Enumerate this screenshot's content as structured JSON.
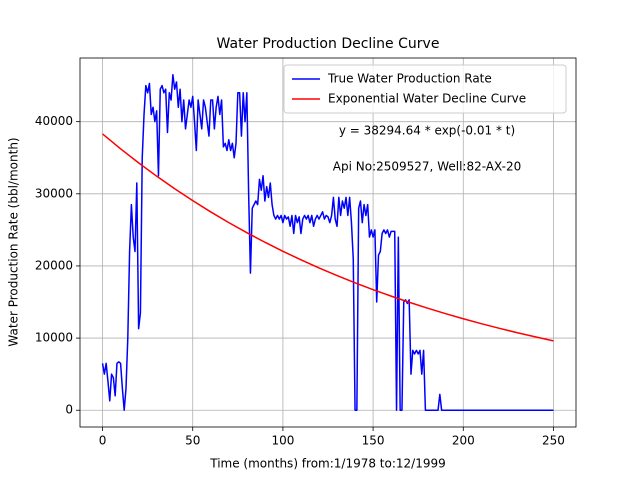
{
  "chart_data": {
    "type": "line",
    "title": "Water Production Decline Curve",
    "xlabel": "Time (months) from:1/1978 to:12/1999",
    "ylabel": "Water Production Rate (bbl/month)",
    "annotations": [
      "y = 38294.64 * exp(-0.01 * t)",
      "Api No:2509527, Well:82-AX-20"
    ],
    "xlim": [
      -12.5,
      262.5
    ],
    "xticks": [
      0,
      50,
      100,
      150,
      200,
      250
    ],
    "ylim": [
      -2325,
      48825
    ],
    "yticks": [
      0,
      10000,
      20000,
      30000,
      40000
    ],
    "grid": true,
    "legend": "upper right",
    "series": [
      {
        "name": "True Water Production Rate",
        "color": "#0000ff",
        "x": [
          0,
          1,
          2,
          3,
          4,
          5,
          6,
          7,
          8,
          9,
          10,
          11,
          12,
          13,
          14,
          15,
          16,
          17,
          18,
          19,
          20,
          21,
          22,
          23,
          24,
          25,
          26,
          27,
          28,
          29,
          30,
          31,
          32,
          33,
          34,
          35,
          36,
          37,
          38,
          39,
          40,
          41,
          42,
          43,
          44,
          45,
          46,
          47,
          48,
          49,
          50,
          51,
          52,
          53,
          54,
          55,
          56,
          57,
          58,
          59,
          60,
          61,
          62,
          63,
          64,
          65,
          66,
          67,
          68,
          69,
          70,
          71,
          72,
          73,
          74,
          75,
          76,
          77,
          78,
          79,
          80,
          81,
          82,
          83,
          84,
          85,
          86,
          87,
          88,
          89,
          90,
          91,
          92,
          93,
          94,
          95,
          96,
          97,
          98,
          99,
          100,
          101,
          102,
          103,
          104,
          105,
          106,
          107,
          108,
          109,
          110,
          111,
          112,
          113,
          114,
          115,
          116,
          117,
          118,
          119,
          120,
          121,
          122,
          123,
          124,
          125,
          126,
          127,
          128,
          129,
          130,
          131,
          132,
          133,
          134,
          135,
          136,
          137,
          138,
          139,
          140,
          141,
          142,
          143,
          144,
          145,
          146,
          147,
          148,
          149,
          150,
          151,
          152,
          153,
          154,
          155,
          156,
          157,
          158,
          159,
          160,
          161,
          162,
          163,
          164,
          165,
          166,
          167,
          168,
          169,
          170,
          171,
          172,
          173,
          174,
          175,
          176,
          177,
          178,
          179,
          186,
          187,
          188,
          250
        ],
        "values": [
          6500,
          5000,
          6500,
          4000,
          1300,
          5000,
          4500,
          2000,
          6500,
          6700,
          6500,
          3000,
          0,
          3000,
          10000,
          22000,
          28500,
          24000,
          22000,
          31500,
          11300,
          13500,
          35000,
          41000,
          45000,
          44000,
          45300,
          41000,
          42000,
          40000,
          41500,
          32500,
          44500,
          45000,
          44000,
          44500,
          38500,
          44000,
          43000,
          46500,
          44500,
          45500,
          42000,
          44500,
          40000,
          43000,
          39000,
          41000,
          43000,
          42000,
          43500,
          40000,
          36000,
          43000,
          41000,
          39000,
          43000,
          42000,
          40000,
          38000,
          43000,
          43000,
          39000,
          42000,
          43500,
          41000,
          43000,
          36500,
          37000,
          36000,
          37500,
          36000,
          37000,
          35000,
          37000,
          44000,
          44000,
          38000,
          44000,
          40000,
          44000,
          30000,
          19000,
          28000,
          28500,
          29000,
          28500,
          32000,
          30500,
          32500,
          29000,
          31000,
          29500,
          31500,
          28500,
          27000,
          26500,
          27000,
          26500,
          27000,
          26000,
          27000,
          26500,
          26800,
          25500,
          27000,
          24500,
          27000,
          26000,
          26800,
          24500,
          26500,
          27000,
          26500,
          27000,
          26000,
          27000,
          25500,
          26500,
          27000,
          26500,
          27000,
          27500,
          26500,
          27000,
          26800,
          26000,
          27000,
          29500,
          26500,
          25500,
          29500,
          27000,
          29000,
          28000,
          29500,
          27000,
          29500,
          26000,
          21000,
          0,
          0,
          28000,
          29000,
          26000,
          28500,
          27000,
          28500,
          24000,
          25000,
          24000,
          25000,
          15000,
          21500,
          22000,
          24500,
          25000,
          24500,
          25000,
          24000,
          24800,
          24800,
          24800,
          0,
          24000,
          0,
          0,
          15000,
          15300,
          14800,
          15300,
          5000,
          8300,
          7800,
          8300,
          7800,
          8300,
          5000,
          8300,
          0,
          0,
          2200,
          0,
          0
        ]
      },
      {
        "name": "Exponential Water Decline Curve",
        "color": "#ff0000",
        "x": [
          0,
          10,
          20,
          30,
          40,
          50,
          60,
          70,
          80,
          90,
          100,
          110,
          120,
          130,
          140,
          150,
          160,
          170,
          180,
          190,
          200,
          210,
          220,
          230,
          240,
          250
        ],
        "values": [
          38295,
          36235,
          34287,
          32444,
          30699,
          29049,
          27487,
          26009,
          24610,
          23287,
          22035,
          20850,
          19729,
          18668,
          17665,
          16715,
          15816,
          14966,
          14161,
          13400,
          12679,
          11998,
          11353,
          10742,
          10165,
          9618
        ]
      }
    ]
  }
}
